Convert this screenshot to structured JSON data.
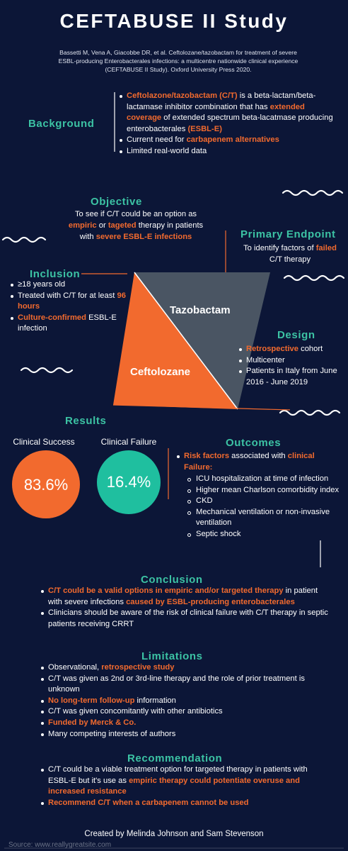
{
  "header": {
    "title": "CEFTABUSE II Study",
    "citation": "Bassetti M, Vena A, Giacobbe DR, et al. Ceftolozane/tazobactam for treatment of severe ESBL-producing Enterobacterales infections: a multicentre nationwide clinical experience (CEFTABUSE II Study). Oxford University Press 2020."
  },
  "background": {
    "heading": "Background",
    "items": [
      [
        {
          "text": "Ceftolazone/tazobactam (C/T)",
          "color": "#f26a2e"
        },
        " is a beta-lactam/beta-lactamase inhibitor combination that has ",
        {
          "text": "extended coverage",
          "color": "#f26a2e"
        },
        " of extended spectrum beta-lacatmase producing enterobacterales ",
        {
          "text": "(ESBL-E)",
          "color": "#f26a2e"
        }
      ],
      [
        "Current need for ",
        {
          "text": "carbapenem alternatives",
          "color": "#f26a2e"
        }
      ],
      [
        "Limited real-world data"
      ]
    ]
  },
  "objective": {
    "heading": "Objective",
    "text": [
      "To see if C/T could be an option as ",
      {
        "text": "empiric",
        "color": "#f26a2e"
      },
      " or ",
      {
        "text": "tageted",
        "color": "#f26a2e"
      },
      " therapy in patients with ",
      {
        "text": "severe ESBL-E infections",
        "color": "#f26a2e"
      }
    ]
  },
  "primary_endpoint": {
    "heading": "Primary Endpoint",
    "text": [
      "To identify factors of ",
      {
        "text": "failed",
        "color": "#f26a2e"
      },
      " C/T therapy"
    ]
  },
  "inclusion": {
    "heading": "Inclusion",
    "items": [
      [
        "≥18 years old"
      ],
      [
        "Treated with C/T for at least ",
        {
          "text": "96 hours",
          "color": "#f26a2e"
        }
      ],
      [
        {
          "text": "Culture-confirmed",
          "color": "#f26a2e"
        },
        " ESBL-E infection"
      ]
    ]
  },
  "drug_shape": {
    "top_label": "Tazobactam",
    "bottom_label": "Ceftolozane"
  },
  "design": {
    "heading": "Design",
    "items": [
      [
        {
          "text": "Retrospective",
          "color": "#f26a2e"
        },
        " cohort"
      ],
      [
        "Multicenter"
      ],
      [
        "Patients in Italy from June 2016 - June 2019"
      ]
    ]
  },
  "results": {
    "heading": "Results",
    "success_label": "Clinical Success",
    "success_value": "83.6%",
    "failure_label": "Clinical Failure",
    "failure_value": "16.4%"
  },
  "outcomes": {
    "heading": "Outcomes",
    "items": [
      [
        {
          "text": "Risk factors",
          "color": "#f26a2e"
        },
        " associated with ",
        {
          "text": "clinical Failure:",
          "color": "#f26a2e"
        }
      ]
    ],
    "subitems": [
      "ICU hospitalization at time of infection",
      "Higher mean Charlson comorbidity index",
      "CKD",
      "Mechanical ventilation or non-invasive ventilation",
      "Septic shock"
    ]
  },
  "conclusion": {
    "heading": "Conclusion",
    "items": [
      [
        {
          "text": "C/T could be a valid options in empiric and/or targeted therapy",
          "color": "#f26a2e"
        },
        " in patient with severe infections ",
        {
          "text": "caused by ESBL-producing enterobacterales",
          "color": "#f26a2e"
        }
      ],
      [
        "Clinicians should be aware of the risk of clinical failure with C/T therapy in septic patients receiving CRRT"
      ]
    ]
  },
  "limitations": {
    "heading": "Limitations",
    "items": [
      [
        "Observational, ",
        {
          "text": "retrospective study",
          "color": "#f26a2e"
        }
      ],
      [
        "C/T was given as 2nd or 3rd-line therapy and the role of prior treatment is unknown"
      ],
      [
        {
          "text": "No long-term follow-up",
          "color": "#f26a2e"
        },
        " information"
      ],
      [
        "C/T was given concomitantly with other antibiotics"
      ],
      [
        {
          "text": "Funded by Merck & Co.",
          "color": "#f26a2e"
        }
      ],
      [
        "Many competing interests of authors"
      ]
    ]
  },
  "recommendation": {
    "heading": "Recommendation",
    "items": [
      [
        "C/T could be a viable treatment option for targeted therapy in patients with ESBL-E but it's use as ",
        {
          "text": "empiric therapy could potentiate overuse and increased resistance",
          "color": "#f26a2e"
        }
      ],
      [
        {
          "text": "Recommend C/T when a carbapenem cannot be used",
          "color": "#f26a2e"
        }
      ]
    ]
  },
  "footer": {
    "credit": "Created by Melinda Johnson and Sam Stevenson",
    "source": "Source: www.reallygreatsite.com"
  }
}
